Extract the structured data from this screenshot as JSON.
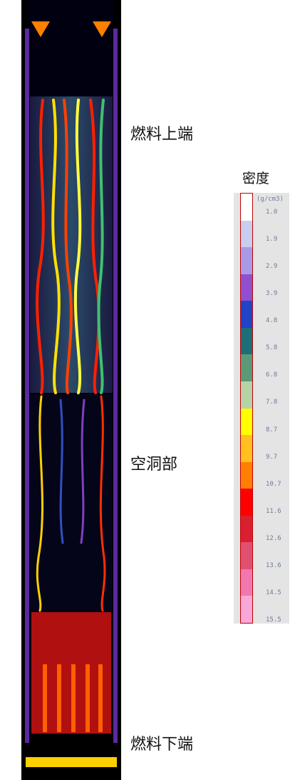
{
  "annotations": {
    "fuel_top": "燃料上端",
    "cavity": "空洞部",
    "fuel_bottom": "燃料下端"
  },
  "legend": {
    "title": "密度",
    "unit": "(g/cm3)",
    "ticks": [
      "1.0",
      "1.9",
      "2.9",
      "3.9",
      "4.8",
      "5.8",
      "6.8",
      "7.8",
      "8.7",
      "9.7",
      "10.7",
      "11.6",
      "12.6",
      "13.6",
      "14.5",
      "15.5"
    ],
    "colors": [
      "#ffffff",
      "#c8cfee",
      "#a99ae8",
      "#8f4fcf",
      "#2044c8",
      "#1c6e78",
      "#5a9a78",
      "#b4d4a8",
      "#ffff00",
      "#ffc020",
      "#ff8000",
      "#ff0000",
      "#d82030",
      "#e05070",
      "#f078b0",
      "#f8a8d8"
    ]
  }
}
